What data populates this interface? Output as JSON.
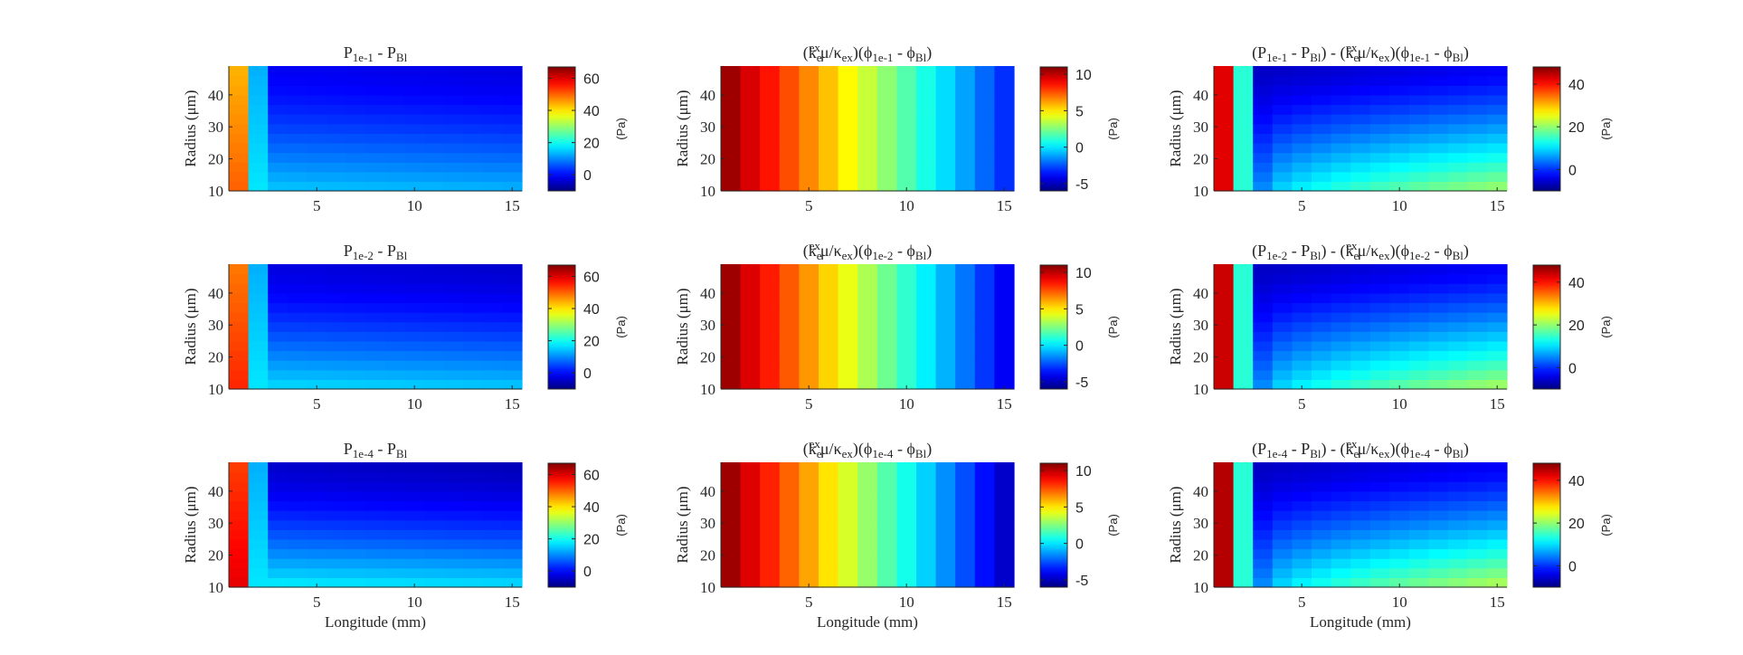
{
  "chart_data": {
    "type": "heatmap",
    "layout": "3x3 grid",
    "x_cells": 15,
    "y_cells": 13,
    "xlim": [
      0.5,
      15.5
    ],
    "ylim": [
      10,
      49
    ],
    "xticks": [
      5,
      10,
      15
    ],
    "yticks": [
      10,
      20,
      30,
      40
    ],
    "xlabel": "Longitude (mm)",
    "ylabel": "Radius (μm)",
    "colorbar_label": "(Pa)",
    "colormap": "jet",
    "panels": [
      {
        "row": 0,
        "col": 0,
        "model": "A",
        "amp": 0.0,
        "title": {
          "p1": "P",
          "s1": "1e-1",
          "p2": " - P",
          "s2": "Bl"
        },
        "clim": [
          -10,
          67
        ],
        "cticks": [
          0,
          20,
          40,
          60
        ],
        "show_xlabel": false
      },
      {
        "row": 0,
        "col": 1,
        "model": "B",
        "amp": 0.6,
        "title": {
          "pre": "(k",
          "esup": "ex",
          "esub": "e",
          "mid": "μ/κ",
          "msub": "ex",
          "phi": ")(ϕ",
          "s1": "1e-1",
          "p2": " - ϕ",
          "s2": "Bl",
          "end": ")"
        },
        "clim": [
          -6,
          11
        ],
        "cticks": [
          -5,
          0,
          5,
          10
        ],
        "show_xlabel": false
      },
      {
        "row": 0,
        "col": 2,
        "model": "C",
        "amp": 0.35,
        "title": {
          "lead": "(P",
          "s1": "1e-1",
          "p2": " - P",
          "s2": "Bl",
          "mid2": ") - (k",
          "esup": "ex",
          "esub": "e",
          "mid": "μ/κ",
          "msub": "ex",
          "phi": ")(ϕ",
          "s3": "1e-1",
          "p3": " - ϕ",
          "s4": "Bl",
          "end": ")"
        },
        "clim": [
          -10,
          48
        ],
        "cticks": [
          0,
          20,
          40
        ],
        "show_xlabel": false
      },
      {
        "row": 1,
        "col": 0,
        "model": "A",
        "amp": 0.5,
        "title": {
          "p1": "P",
          "s1": "1e-2",
          "p2": " - P",
          "s2": "Bl"
        },
        "clim": [
          -10,
          67
        ],
        "cticks": [
          0,
          20,
          40,
          60
        ],
        "show_xlabel": false
      },
      {
        "row": 1,
        "col": 1,
        "model": "B",
        "amp": 0.82,
        "title": {
          "pre": "(k",
          "esup": "ex",
          "esub": "e",
          "mid": "μ/κ",
          "msub": "ex",
          "phi": ")(ϕ",
          "s1": "1e-2",
          "p2": " - ϕ",
          "s2": "Bl",
          "end": ")"
        },
        "clim": [
          -6,
          11
        ],
        "cticks": [
          -5,
          0,
          5,
          10
        ],
        "show_xlabel": false
      },
      {
        "row": 1,
        "col": 2,
        "model": "C",
        "amp": 0.68,
        "title": {
          "lead": "(P",
          "s1": "1e-2",
          "p2": " - P",
          "s2": "Bl",
          "mid2": ") - (k",
          "esup": "ex",
          "esub": "e",
          "mid": "μ/κ",
          "msub": "ex",
          "phi": ")(ϕ",
          "s3": "1e-2",
          "p3": " - ϕ",
          "s4": "Bl",
          "end": ")"
        },
        "clim": [
          -10,
          48
        ],
        "cticks": [
          0,
          20,
          40
        ],
        "show_xlabel": false
      },
      {
        "row": 2,
        "col": 0,
        "model": "A",
        "amp": 1.0,
        "title": {
          "p1": "P",
          "s1": "1e-4",
          "p2": " - P",
          "s2": "Bl"
        },
        "clim": [
          -10,
          67
        ],
        "cticks": [
          0,
          20,
          40,
          60
        ],
        "show_xlabel": true
      },
      {
        "row": 2,
        "col": 1,
        "model": "B",
        "amp": 1.0,
        "title": {
          "pre": "(k",
          "esup": "ex",
          "esub": "e",
          "mid": "μ/κ",
          "msub": "ex",
          "phi": ")(ϕ",
          "s1": "1e-4",
          "p2": " - ϕ",
          "s2": "Bl",
          "end": ")"
        },
        "clim": [
          -6,
          11
        ],
        "cticks": [
          -5,
          0,
          5,
          10
        ],
        "show_xlabel": true
      },
      {
        "row": 2,
        "col": 2,
        "model": "C",
        "amp": 1.0,
        "title": {
          "lead": "(P",
          "s1": "1e-4",
          "p2": " - P",
          "s2": "Bl",
          "mid2": ") - (k",
          "esup": "ex",
          "esub": "e",
          "mid": "μ/κ",
          "msub": "ex",
          "phi": ")(ϕ",
          "s3": "1e-4",
          "p3": " - ϕ",
          "s4": "Bl",
          "end": ")"
        },
        "clim": [
          -10,
          48
        ],
        "cticks": [
          0,
          20,
          40
        ],
        "show_xlabel": true
      }
    ]
  }
}
